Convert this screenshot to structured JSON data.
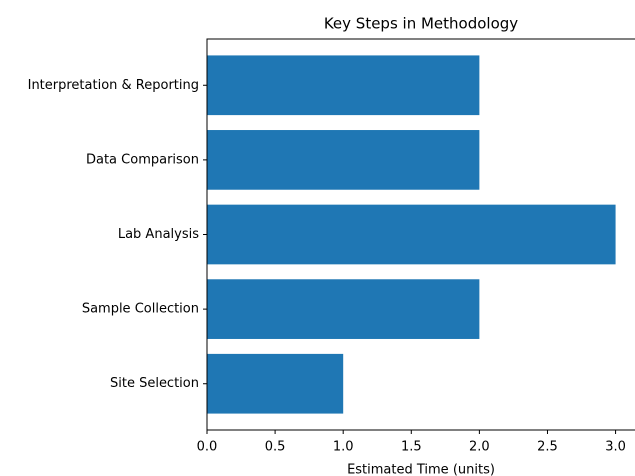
{
  "chart_data": {
    "type": "barh",
    "title": "Key Steps in Methodology",
    "xlabel": "Estimated Time (units)",
    "categories": [
      "Site Selection",
      "Sample Collection",
      "Lab Analysis",
      "Data Comparison",
      "Interpretation & Reporting"
    ],
    "values": [
      1,
      2,
      3,
      2,
      2
    ],
    "color": "#1f77b4",
    "xlim": [
      0,
      3.15
    ],
    "xticks": [
      {
        "value": 0,
        "label": "0.0"
      },
      0.5,
      {
        "value": 1,
        "label": "1.0"
      },
      1.5,
      {
        "value": 2,
        "label": "2.0"
      },
      2.5,
      {
        "value": 3,
        "label": "3.0"
      }
    ]
  }
}
